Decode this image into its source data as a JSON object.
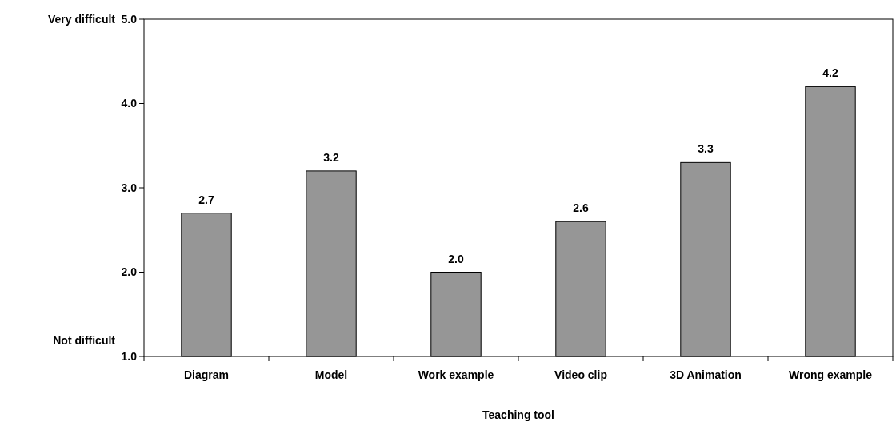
{
  "chart_data": {
    "type": "bar",
    "xlabel": "Teaching tool",
    "categories": [
      "Diagram",
      "Model",
      "Work example",
      "Video clip",
      "3D Animation",
      "Wrong example"
    ],
    "values": [
      2.7,
      3.2,
      2.0,
      2.6,
      3.3,
      4.2
    ],
    "color": "#969696",
    "value_labels": [
      "2.7",
      "3.2",
      "2.0",
      "2.6",
      "3.3",
      "4.2"
    ],
    "ylim": [
      1,
      5
    ],
    "yticks": [
      {
        "value": 1,
        "label": "1.0"
      },
      {
        "value": 2,
        "label": "2.0"
      },
      {
        "value": 3,
        "label": "3.0"
      },
      {
        "value": 4,
        "label": "4.0"
      },
      {
        "value": 5,
        "label": "5.0"
      }
    ],
    "annotations": [
      "Very difficult",
      "Not difficult"
    ]
  }
}
